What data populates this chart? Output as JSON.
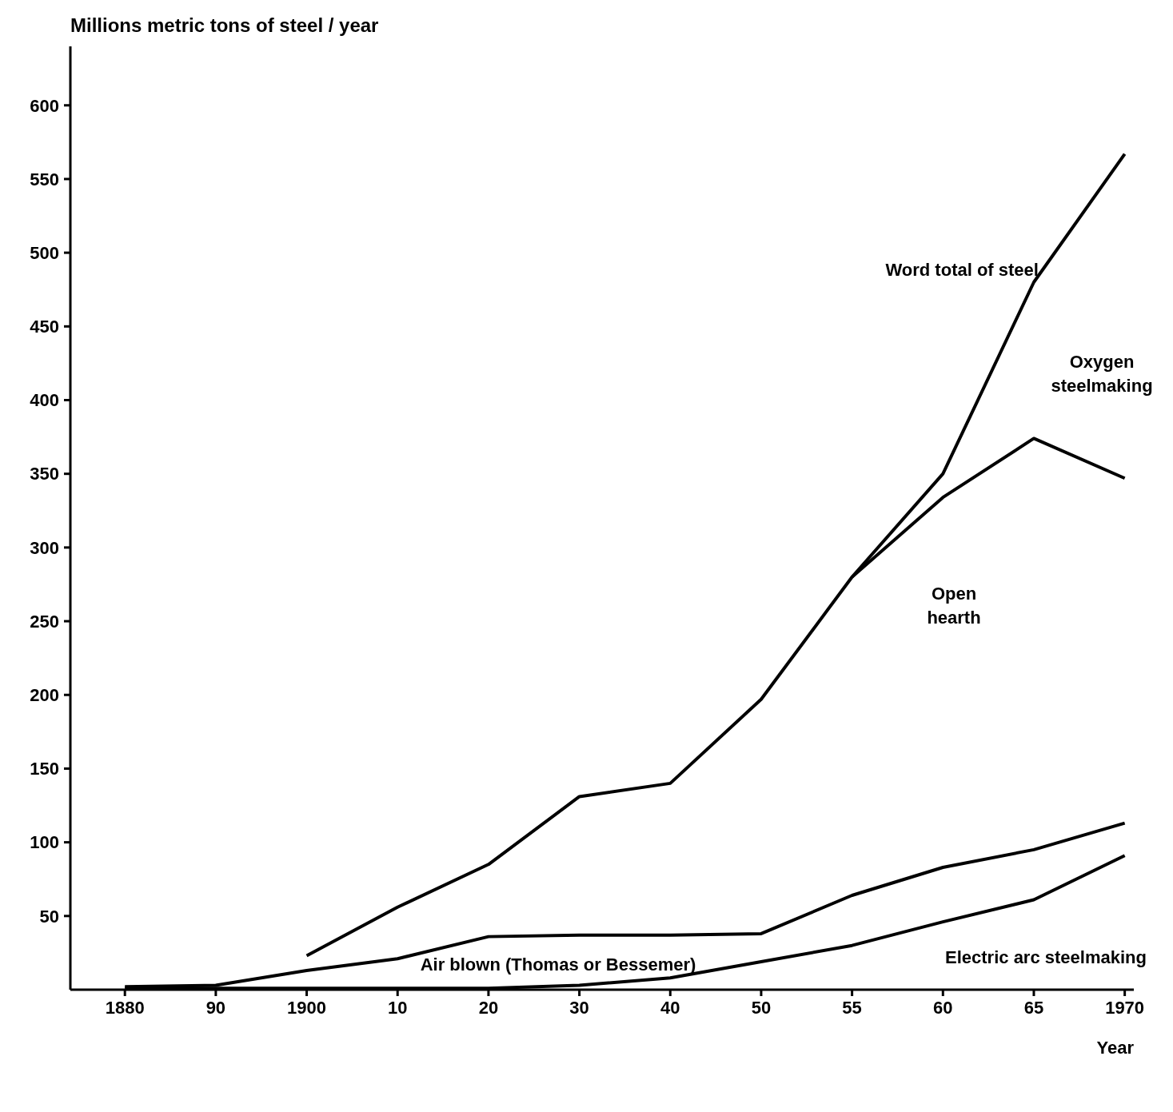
{
  "chart_data": {
    "type": "line",
    "ylabel": "Millions metric tons of steel / year",
    "xlabel": "Year",
    "categories": [
      "1880",
      "90",
      "1900",
      "10",
      "20",
      "30",
      "40",
      "50",
      "55",
      "60",
      "65",
      "1970"
    ],
    "series": [
      {
        "color": "#000000",
        "values": [
          null,
          null,
          23,
          56,
          85,
          131,
          140,
          197,
          280,
          350,
          480,
          567
        ]
      },
      {
        "color": "#000000",
        "values": [
          null,
          null,
          null,
          null,
          null,
          null,
          null,
          null,
          280,
          334,
          374,
          347
        ]
      },
      {
        "color": "#000000",
        "values": [
          2,
          3,
          13,
          21,
          36,
          37,
          37,
          38,
          64,
          83,
          95,
          113
        ]
      },
      {
        "color": "#000000",
        "values": [
          1,
          1,
          1,
          1,
          1,
          3,
          8,
          19,
          30,
          46,
          61,
          91
        ]
      }
    ],
    "ylim": [
      0,
      640
    ],
    "yticks": [
      50,
      100,
      150,
      200,
      250,
      300,
      350,
      400,
      450,
      500,
      550,
      600
    ],
    "grid": false,
    "legend": false,
    "marker": "none",
    "line_style": "solid",
    "annotations": [
      {
        "text": "Word total of steel",
        "x": "65",
        "y": 480
      },
      "Open hearth",
      "Oxygen steelmaking",
      "Air blown (Thomas or Bessemer)",
      "Electric arc steelmaking"
    ]
  }
}
